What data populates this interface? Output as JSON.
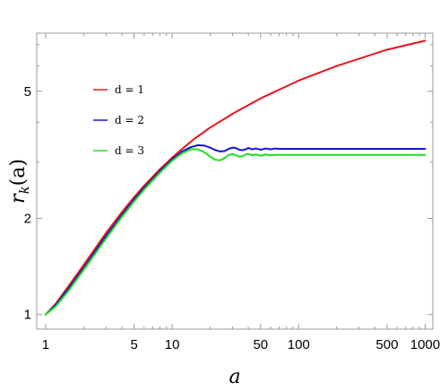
{
  "chart_data": {
    "type": "line",
    "title": "",
    "xlabel": "a",
    "ylabel_main": "r",
    "ylabel_sub": "k",
    "ylabel_arg": "(a)",
    "x_scale": "log",
    "y_scale": "log",
    "xlim": [
      0.85,
      1150
    ],
    "ylim": [
      0.9,
      7.6
    ],
    "x_ticks": [
      {
        "value": 1,
        "label": "1"
      },
      {
        "value": 5,
        "label": "5"
      },
      {
        "value": 10,
        "label": "10"
      },
      {
        "value": 50,
        "label": "50"
      },
      {
        "value": 100,
        "label": "100"
      },
      {
        "value": 500,
        "label": "500"
      },
      {
        "value": 1000,
        "label": "1000"
      }
    ],
    "x_minor_ticks": [
      2,
      3,
      4,
      6,
      7,
      8,
      9,
      20,
      30,
      40,
      60,
      70,
      80,
      90,
      200,
      300,
      400,
      600,
      700,
      800,
      900
    ],
    "y_ticks": [
      {
        "value": 1,
        "label": "1"
      },
      {
        "value": 2,
        "label": "2"
      },
      {
        "value": 5,
        "label": "5"
      }
    ],
    "y_minor_ticks": [
      3,
      4,
      6,
      7
    ],
    "grid": false,
    "legend_position": "upper-left",
    "series": [
      {
        "name": "d = 1",
        "color": "#e8141c",
        "x": [
          1,
          1.2,
          1.5,
          2,
          3,
          4,
          5,
          6,
          8,
          10,
          12,
          15,
          20,
          30,
          50,
          100,
          200,
          500,
          1000
        ],
        "y": [
          1.0,
          1.08,
          1.22,
          1.43,
          1.8,
          2.09,
          2.33,
          2.53,
          2.85,
          3.1,
          3.3,
          3.55,
          3.85,
          4.25,
          4.75,
          5.4,
          6.0,
          6.75,
          7.2
        ]
      },
      {
        "name": "d = 2",
        "color": "#1414d2",
        "x": [
          1,
          1.2,
          1.5,
          2,
          3,
          4,
          5,
          6,
          8,
          10,
          12,
          14,
          16,
          18,
          20,
          22,
          24,
          26,
          28,
          30,
          32,
          34,
          36,
          38,
          40,
          43,
          46,
          50,
          55,
          60,
          65,
          70,
          80,
          100,
          200,
          500,
          1000
        ],
        "y": [
          1.0,
          1.07,
          1.2,
          1.4,
          1.76,
          2.05,
          2.29,
          2.49,
          2.81,
          3.06,
          3.24,
          3.34,
          3.39,
          3.38,
          3.33,
          3.27,
          3.24,
          3.25,
          3.3,
          3.33,
          3.32,
          3.28,
          3.27,
          3.29,
          3.32,
          3.29,
          3.31,
          3.28,
          3.31,
          3.29,
          3.31,
          3.3,
          3.3,
          3.3,
          3.3,
          3.3,
          3.3
        ]
      },
      {
        "name": "d = 3",
        "color": "#1fe01f",
        "x": [
          1,
          1.2,
          1.5,
          2,
          3,
          4,
          5,
          6,
          8,
          10,
          12,
          14,
          16,
          18,
          20,
          22,
          24,
          26,
          28,
          30,
          32,
          34,
          36,
          38,
          40,
          43,
          46,
          50,
          55,
          60,
          65,
          70,
          80,
          100,
          200,
          500,
          1000
        ],
        "y": [
          1.0,
          1.06,
          1.18,
          1.38,
          1.73,
          2.02,
          2.26,
          2.46,
          2.78,
          3.03,
          3.2,
          3.29,
          3.29,
          3.22,
          3.12,
          3.05,
          3.04,
          3.09,
          3.16,
          3.18,
          3.15,
          3.12,
          3.13,
          3.17,
          3.18,
          3.15,
          3.17,
          3.14,
          3.17,
          3.15,
          3.16,
          3.16,
          3.16,
          3.16,
          3.16,
          3.16,
          3.16
        ]
      }
    ]
  }
}
